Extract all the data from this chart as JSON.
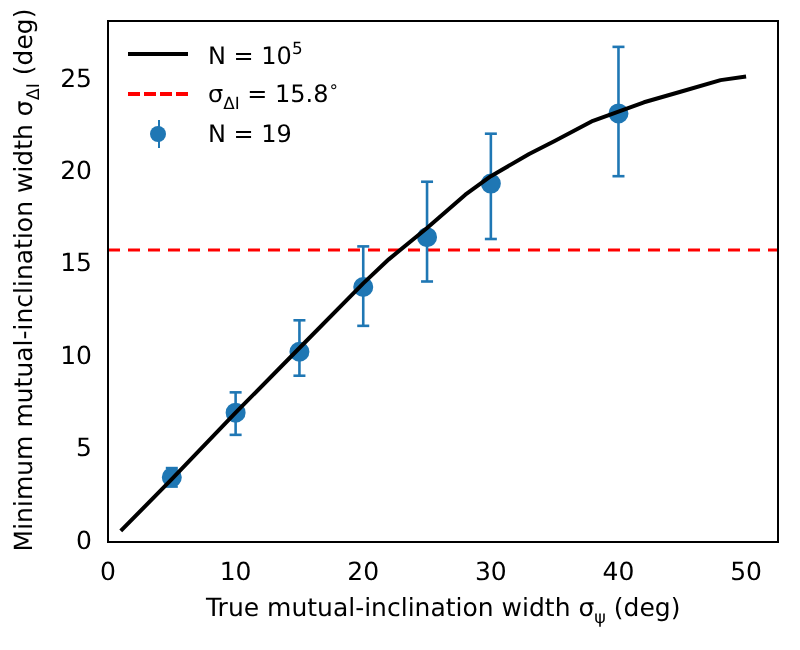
{
  "chart_data": {
    "type": "line",
    "xlabel": "True mutual-inclination width σ$_{ψ}$ (deg)",
    "ylabel": "Minimum mutual-inclination width σ$_{ΔI}$ (deg)",
    "xlim": [
      0,
      52.5
    ],
    "ylim": [
      0,
      28.2
    ],
    "xticks": [
      0,
      10,
      20,
      30,
      40,
      50
    ],
    "yticks": [
      0,
      5,
      10,
      15,
      20,
      25
    ],
    "grid": false,
    "legend": "top left",
    "series": [
      {
        "name": "N = 10$^{5}$",
        "color": "#000000",
        "marker": "none",
        "line_style": "solid",
        "x": [
          1,
          5,
          10,
          15,
          20,
          22,
          25,
          28,
          30,
          33,
          35,
          38,
          40,
          42,
          45,
          48,
          50
        ],
        "values": [
          0.6,
          3.4,
          7.0,
          10.5,
          14.0,
          15.3,
          17.0,
          18.8,
          19.8,
          21.0,
          21.7,
          22.8,
          23.3,
          23.8,
          24.4,
          25.0,
          25.2
        ]
      },
      {
        "name": "N = 19",
        "type": "scatter",
        "color": "#1f77b4",
        "marker": "circle",
        "x": [
          5,
          10,
          15,
          20,
          25,
          30,
          40
        ],
        "values": [
          3.5,
          7.0,
          10.3,
          13.8,
          16.5,
          19.4,
          23.2
        ],
        "errors": [
          [
            3.0,
            4.0
          ],
          [
            5.8,
            8.1
          ],
          [
            9.0,
            12.0
          ],
          [
            11.7,
            16.0
          ],
          [
            14.1,
            19.5
          ],
          [
            16.4,
            22.1
          ],
          [
            19.8,
            26.8
          ]
        ]
      }
    ],
    "ref_lines": [
      {
        "axis": "y",
        "value": 15.8,
        "label": "σ$_{ΔI}$ = 15.8$^{∘}$",
        "color": "#ff0000",
        "line_style": "dashed"
      }
    ]
  }
}
